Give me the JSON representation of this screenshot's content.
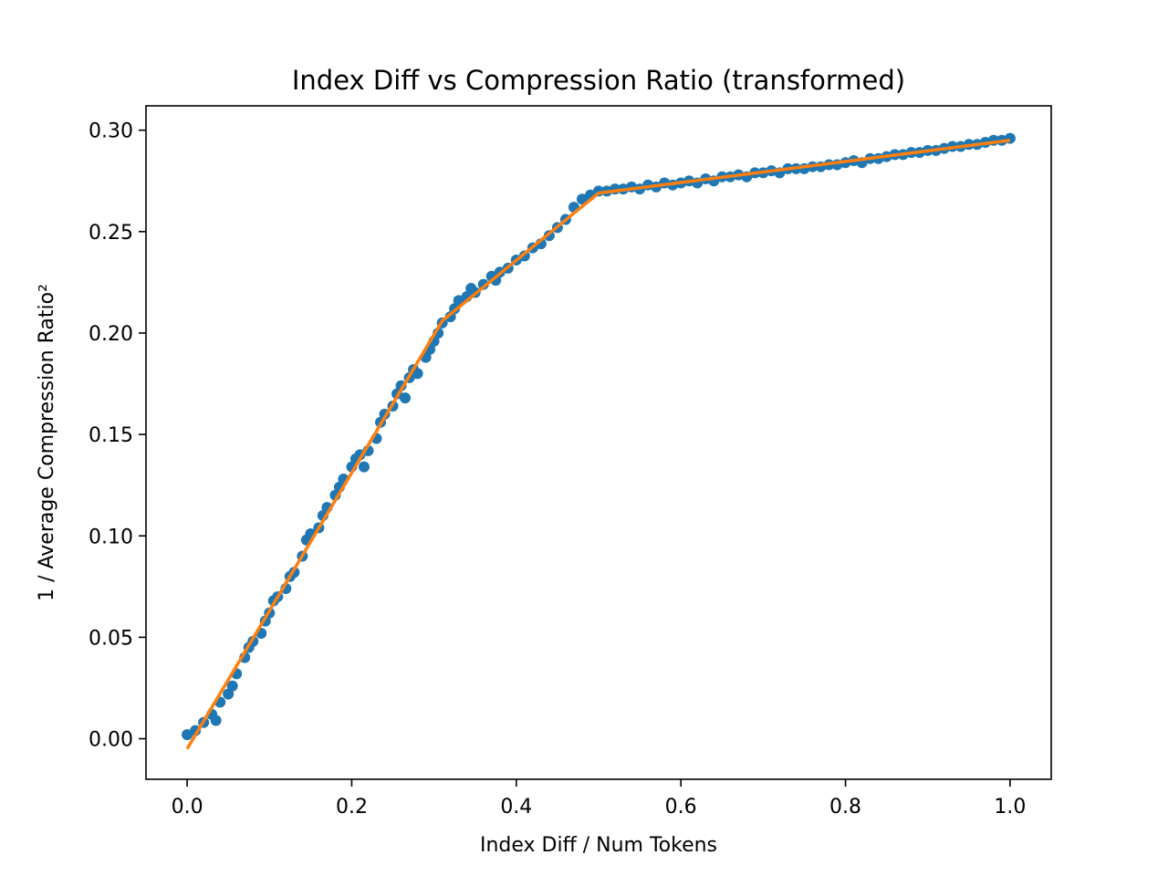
{
  "chart_data": {
    "type": "scatter",
    "title": "Index Diff vs Compression Ratio (transformed)",
    "xlabel": "Index Diff / Num Tokens",
    "ylabel": "1 / Average Compression Ratio²",
    "xlim": [
      -0.05,
      1.05
    ],
    "ylim": [
      -0.02,
      0.312
    ],
    "x_ticks": [
      0.0,
      0.2,
      0.4,
      0.6,
      0.8,
      1.0
    ],
    "x_tick_labels": [
      "0.0",
      "0.2",
      "0.4",
      "0.6",
      "0.8",
      "1.0"
    ],
    "y_ticks": [
      0.0,
      0.05,
      0.1,
      0.15,
      0.2,
      0.25,
      0.3
    ],
    "y_tick_labels": [
      "0.00",
      "0.05",
      "0.10",
      "0.15",
      "0.20",
      "0.25",
      "0.30"
    ],
    "grid": false,
    "legend": "none",
    "series": [
      {
        "kind": "scatter",
        "color": "#1f77b4",
        "points": [
          [
            0.0,
            0.002
          ],
          [
            0.01,
            0.004
          ],
          [
            0.02,
            0.008
          ],
          [
            0.03,
            0.012
          ],
          [
            0.035,
            0.009
          ],
          [
            0.04,
            0.018
          ],
          [
            0.05,
            0.022
          ],
          [
            0.055,
            0.026
          ],
          [
            0.06,
            0.032
          ],
          [
            0.07,
            0.04
          ],
          [
            0.075,
            0.045
          ],
          [
            0.08,
            0.048
          ],
          [
            0.09,
            0.052
          ],
          [
            0.095,
            0.058
          ],
          [
            0.1,
            0.062
          ],
          [
            0.105,
            0.068
          ],
          [
            0.11,
            0.07
          ],
          [
            0.12,
            0.074
          ],
          [
            0.125,
            0.08
          ],
          [
            0.13,
            0.082
          ],
          [
            0.14,
            0.09
          ],
          [
            0.145,
            0.098
          ],
          [
            0.15,
            0.101
          ],
          [
            0.16,
            0.104
          ],
          [
            0.165,
            0.11
          ],
          [
            0.17,
            0.114
          ],
          [
            0.18,
            0.12
          ],
          [
            0.185,
            0.124
          ],
          [
            0.19,
            0.128
          ],
          [
            0.2,
            0.134
          ],
          [
            0.205,
            0.138
          ],
          [
            0.21,
            0.14
          ],
          [
            0.215,
            0.134
          ],
          [
            0.22,
            0.142
          ],
          [
            0.23,
            0.148
          ],
          [
            0.235,
            0.156
          ],
          [
            0.24,
            0.16
          ],
          [
            0.25,
            0.164
          ],
          [
            0.255,
            0.17
          ],
          [
            0.26,
            0.174
          ],
          [
            0.265,
            0.168
          ],
          [
            0.27,
            0.178
          ],
          [
            0.275,
            0.182
          ],
          [
            0.28,
            0.18
          ],
          [
            0.29,
            0.188
          ],
          [
            0.295,
            0.192
          ],
          [
            0.3,
            0.196
          ],
          [
            0.305,
            0.2
          ],
          [
            0.31,
            0.205
          ],
          [
            0.32,
            0.208
          ],
          [
            0.325,
            0.212
          ],
          [
            0.33,
            0.216
          ],
          [
            0.34,
            0.218
          ],
          [
            0.345,
            0.222
          ],
          [
            0.35,
            0.22
          ],
          [
            0.36,
            0.224
          ],
          [
            0.37,
            0.228
          ],
          [
            0.375,
            0.226
          ],
          [
            0.38,
            0.23
          ],
          [
            0.39,
            0.232
          ],
          [
            0.4,
            0.236
          ],
          [
            0.41,
            0.238
          ],
          [
            0.42,
            0.242
          ],
          [
            0.43,
            0.244
          ],
          [
            0.44,
            0.248
          ],
          [
            0.45,
            0.252
          ],
          [
            0.46,
            0.256
          ],
          [
            0.47,
            0.262
          ],
          [
            0.48,
            0.266
          ],
          [
            0.49,
            0.268
          ],
          [
            0.5,
            0.27
          ],
          [
            0.51,
            0.27
          ],
          [
            0.52,
            0.271
          ],
          [
            0.53,
            0.271
          ],
          [
            0.54,
            0.272
          ],
          [
            0.55,
            0.271
          ],
          [
            0.56,
            0.273
          ],
          [
            0.57,
            0.272
          ],
          [
            0.58,
            0.274
          ],
          [
            0.59,
            0.273
          ],
          [
            0.6,
            0.274
          ],
          [
            0.61,
            0.275
          ],
          [
            0.62,
            0.274
          ],
          [
            0.63,
            0.276
          ],
          [
            0.64,
            0.275
          ],
          [
            0.65,
            0.277
          ],
          [
            0.66,
            0.277
          ],
          [
            0.67,
            0.278
          ],
          [
            0.68,
            0.277
          ],
          [
            0.69,
            0.279
          ],
          [
            0.7,
            0.279
          ],
          [
            0.71,
            0.28
          ],
          [
            0.72,
            0.279
          ],
          [
            0.73,
            0.281
          ],
          [
            0.74,
            0.281
          ],
          [
            0.75,
            0.281
          ],
          [
            0.76,
            0.282
          ],
          [
            0.77,
            0.282
          ],
          [
            0.78,
            0.283
          ],
          [
            0.79,
            0.283
          ],
          [
            0.8,
            0.284
          ],
          [
            0.81,
            0.285
          ],
          [
            0.82,
            0.284
          ],
          [
            0.83,
            0.286
          ],
          [
            0.84,
            0.286
          ],
          [
            0.85,
            0.287
          ],
          [
            0.86,
            0.288
          ],
          [
            0.87,
            0.288
          ],
          [
            0.88,
            0.289
          ],
          [
            0.89,
            0.289
          ],
          [
            0.9,
            0.29
          ],
          [
            0.91,
            0.29
          ],
          [
            0.92,
            0.291
          ],
          [
            0.93,
            0.292
          ],
          [
            0.94,
            0.292
          ],
          [
            0.95,
            0.293
          ],
          [
            0.96,
            0.293
          ],
          [
            0.97,
            0.294
          ],
          [
            0.98,
            0.295
          ],
          [
            0.99,
            0.295
          ],
          [
            1.0,
            0.296
          ]
        ]
      },
      {
        "kind": "line",
        "color": "#ff7f0e",
        "points": [
          [
            0.0,
            -0.005
          ],
          [
            0.31,
            0.206
          ],
          [
            0.5,
            0.269
          ],
          [
            1.0,
            0.295
          ]
        ]
      }
    ]
  }
}
